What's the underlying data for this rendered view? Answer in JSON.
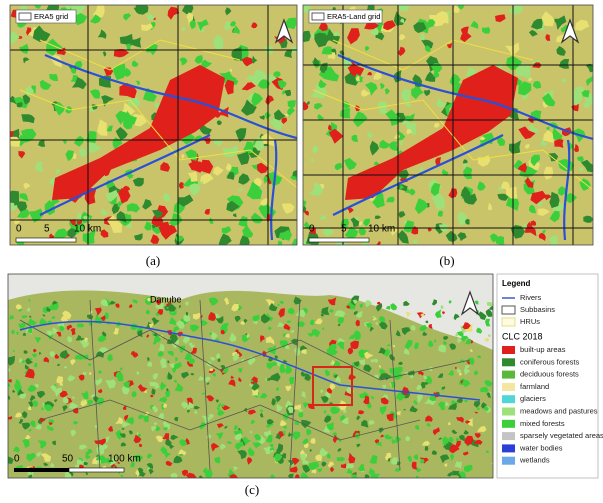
{
  "panels": [
    {
      "label": "(a)",
      "grid_legend": "ERA5 grid",
      "scale": [
        "0",
        "5",
        "10 km"
      ]
    },
    {
      "label": "(b)",
      "grid_legend": "ERA5-Land grid",
      "scale": [
        "0",
        "5",
        "10 km"
      ]
    }
  ],
  "overview": {
    "label": "(c)",
    "place": "Danube",
    "scale": [
      "0",
      "50",
      "100 km"
    ],
    "legend": {
      "title": "Legend",
      "lines": [
        "Rivers",
        "Subbasins",
        "HRUs"
      ],
      "clc_title": "CLC 2018",
      "classes": [
        {
          "name": "built-up areas",
          "color": "#e0201b"
        },
        {
          "name": "coniferous forests",
          "color": "#2f8a2f"
        },
        {
          "name": "deciduous forests",
          "color": "#5ab83a"
        },
        {
          "name": "farmland",
          "color": "#f2e6a0"
        },
        {
          "name": "glaciers",
          "color": "#4fd6d6"
        },
        {
          "name": "meadows and pastures",
          "color": "#9ee07a"
        },
        {
          "name": "mixed forests",
          "color": "#3ccf3c"
        },
        {
          "name": "sparsely vegetated areas",
          "color": "#c4c4c4"
        },
        {
          "name": "water bodies",
          "color": "#2a3fd6"
        },
        {
          "name": "wetlands",
          "color": "#6aa8e8"
        }
      ]
    }
  }
}
